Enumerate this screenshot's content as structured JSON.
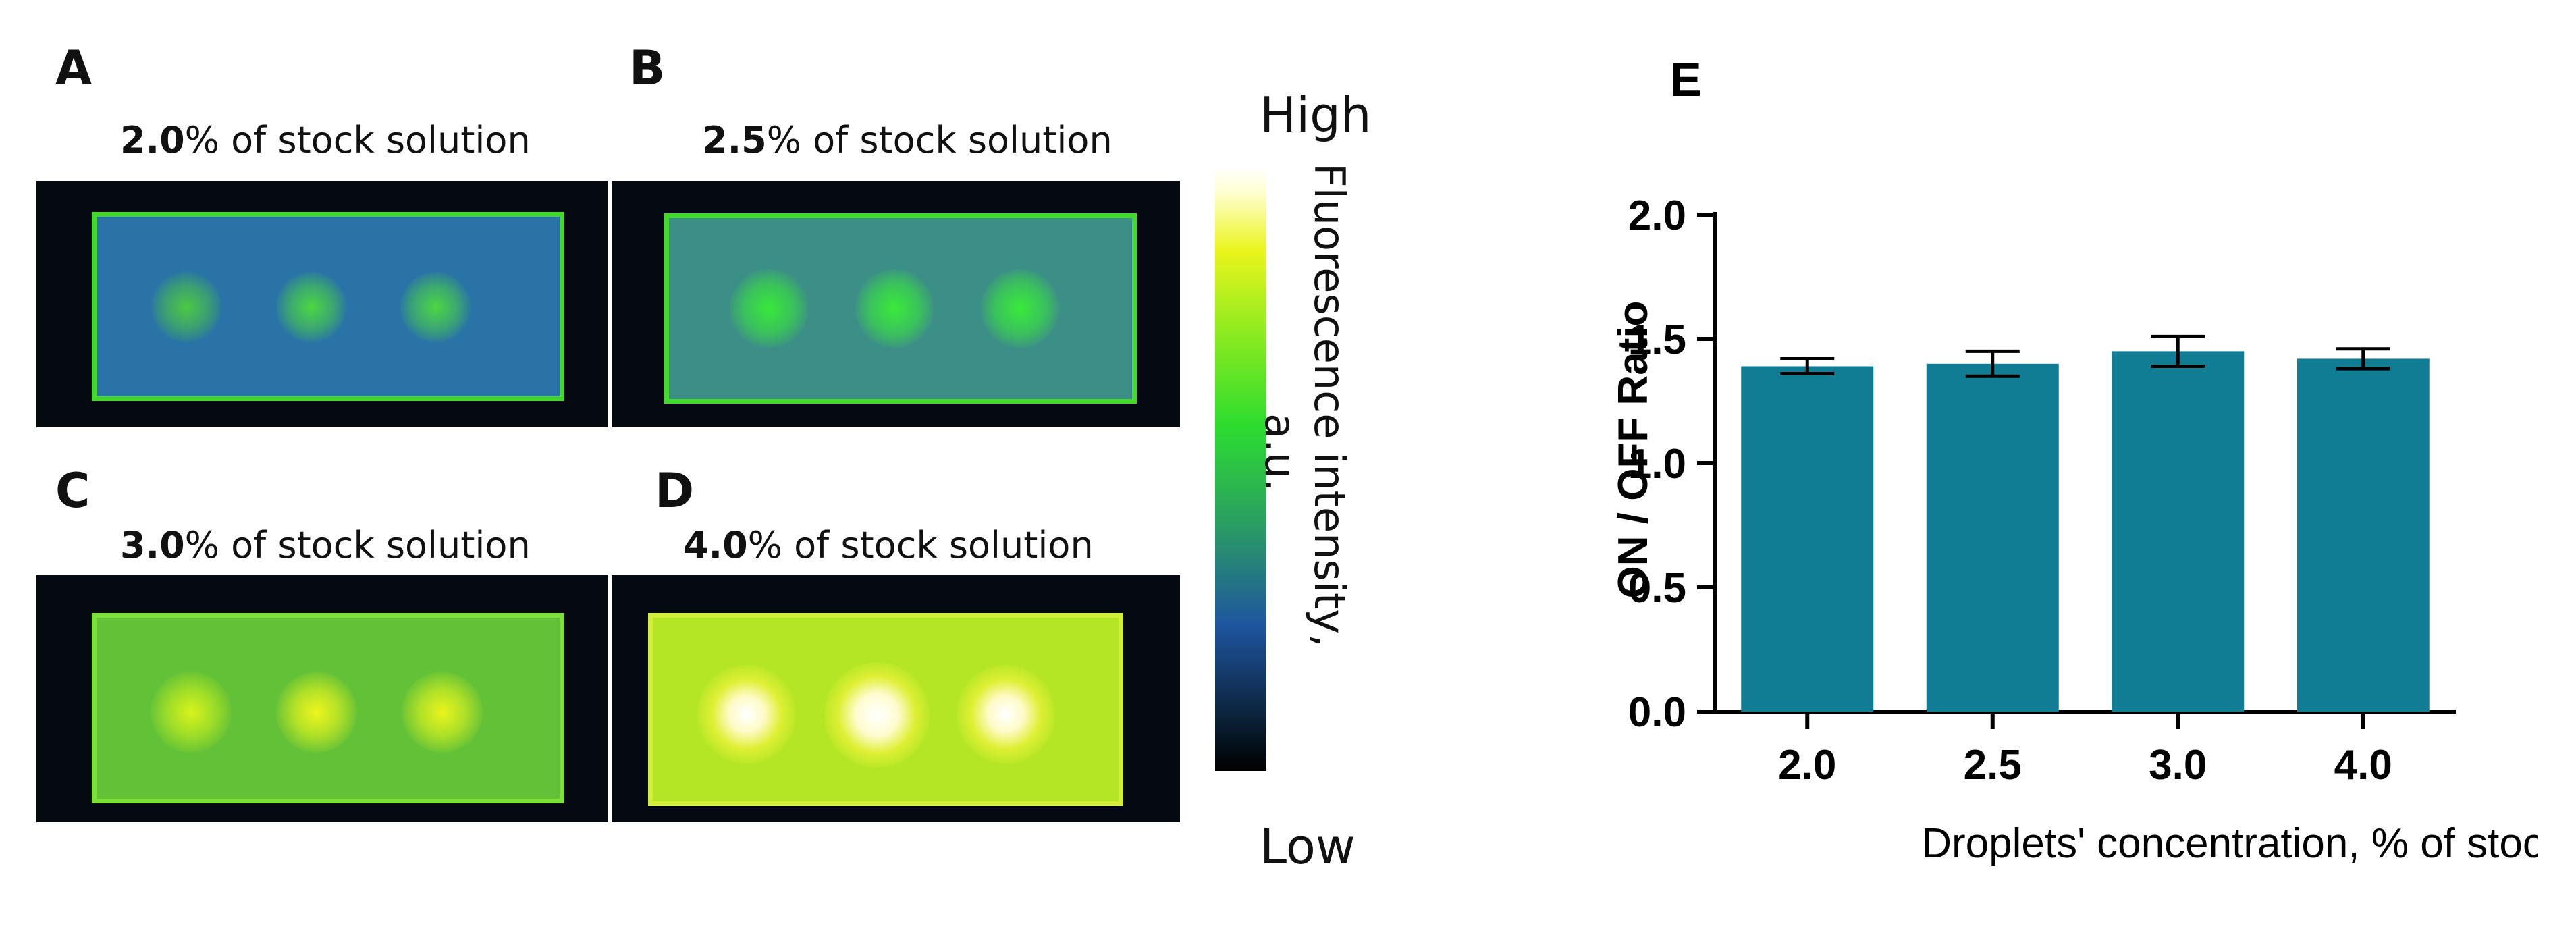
{
  "panels": [
    {
      "letter": "A",
      "bold": "2.0",
      "rest": "% of stock solution"
    },
    {
      "letter": "B",
      "bold": "2.5",
      "rest": "% of stock solution"
    },
    {
      "letter": "C",
      "bold": "3.0",
      "rest": "% of stock solution"
    },
    {
      "letter": "D",
      "bold": "4.0",
      "rest": "% of stock solution"
    }
  ],
  "colorbar": {
    "high": "High",
    "low": "Low",
    "title_line1": "Fluorescence intensity,",
    "title_line2": "a.u."
  },
  "chart_panel_letter": "E",
  "chart_data": {
    "type": "bar",
    "categories": [
      "2.0",
      "2.5",
      "3.0",
      "4.0"
    ],
    "values": [
      1.39,
      1.4,
      1.45,
      1.42
    ],
    "error": [
      0.03,
      0.05,
      0.06,
      0.04
    ],
    "title": "",
    "xlabel": "Droplets' concentration, % of stock solution",
    "ylabel": "ON / OFF Ratio",
    "ylim": [
      0,
      2.0
    ],
    "yticks": [
      "0.0",
      "0.5",
      "1.0",
      "1.5",
      "2.0"
    ],
    "grid": false,
    "bar_color": "#107d94"
  }
}
